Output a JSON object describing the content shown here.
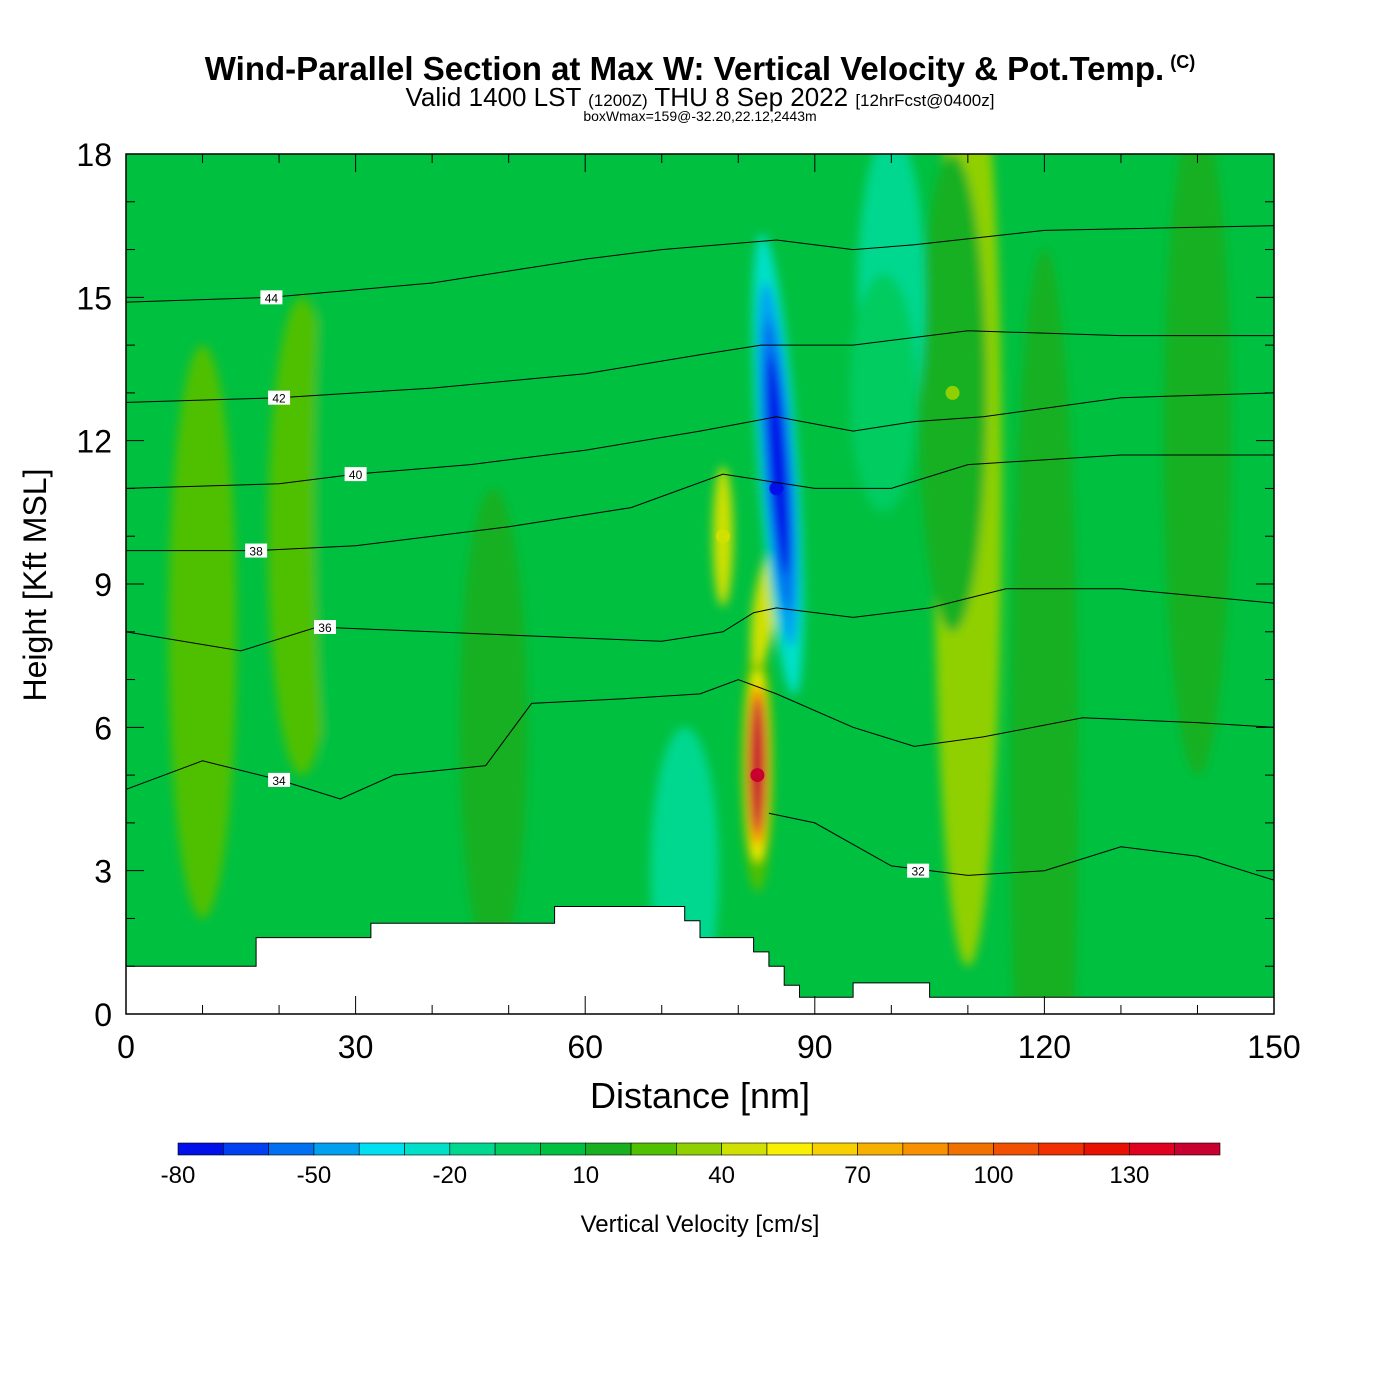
{
  "header": {
    "title": "Wind-Parallel Section at Max W: Vertical Velocity & Pot.Temp.",
    "copyright": "(C)",
    "subtitle_main": "Valid 1400 LST",
    "subtitle_utc": "(1200Z)",
    "subtitle_date": "THU 8 Sep 2022",
    "subtitle_fcst": "[12hrFcst@0400z]",
    "subtitle2": "boxWmax=159@-32.20,22.12,2443m"
  },
  "chart_data": {
    "type": "heatmap",
    "xlabel": "Distance [nm]",
    "ylabel": "Height [Kft MSL]",
    "xlim": [
      0,
      150
    ],
    "ylim": [
      0,
      18
    ],
    "x_ticks": [
      0,
      30,
      60,
      90,
      120,
      150
    ],
    "y_ticks": [
      0,
      3,
      6,
      9,
      12,
      15,
      18
    ],
    "background_value_cm_s": 5,
    "terrain": [
      [
        0,
        1.0
      ],
      [
        17,
        1.0
      ],
      [
        17,
        1.6
      ],
      [
        32,
        1.6
      ],
      [
        32,
        1.9
      ],
      [
        56,
        1.9
      ],
      [
        56,
        2.25
      ],
      [
        73,
        2.25
      ],
      [
        73,
        1.95
      ],
      [
        75,
        1.95
      ],
      [
        75,
        1.6
      ],
      [
        82,
        1.6
      ],
      [
        82,
        1.3
      ],
      [
        84,
        1.3
      ],
      [
        84,
        1.0
      ],
      [
        86,
        1.0
      ],
      [
        86,
        0.6
      ],
      [
        88,
        0.6
      ],
      [
        88,
        0.35
      ],
      [
        95,
        0.35
      ],
      [
        95,
        0.65
      ],
      [
        105,
        0.65
      ],
      [
        105,
        0.35
      ],
      [
        150,
        0.35
      ]
    ],
    "vertical_velocity_features": [
      {
        "x": 82.5,
        "y": 5.0,
        "value_cm_s": 159,
        "note": "updraft core"
      },
      {
        "x": 85,
        "y": 11.0,
        "value_cm_s": -75,
        "note": "downdraft core"
      },
      {
        "x": 78,
        "y": 10.0,
        "value_cm_s": 45
      },
      {
        "x": 108,
        "y": 13.0,
        "value_cm_s": 30
      },
      {
        "x": 100,
        "y": 16.0,
        "value_cm_s": -15
      }
    ],
    "theta_contours": [
      {
        "label": "32",
        "label_pos": [
          103.5,
          3.0
        ],
        "points": [
          [
            84,
            4.2
          ],
          [
            90,
            4.0
          ],
          [
            100,
            3.1
          ],
          [
            110,
            2.9
          ],
          [
            120,
            3.0
          ],
          [
            130,
            3.5
          ],
          [
            140,
            3.3
          ],
          [
            150,
            2.8
          ]
        ]
      },
      {
        "label": "34",
        "label_pos": [
          20,
          4.9
        ],
        "points": [
          [
            0,
            4.7
          ],
          [
            10,
            5.3
          ],
          [
            20,
            4.9
          ],
          [
            28,
            4.5
          ],
          [
            35,
            5.0
          ],
          [
            47,
            5.2
          ],
          [
            53,
            6.5
          ],
          [
            65,
            6.6
          ],
          [
            75,
            6.7
          ],
          [
            80,
            7.0
          ],
          [
            85,
            6.7
          ],
          [
            95,
            6.0
          ],
          [
            103,
            5.6
          ],
          [
            112,
            5.8
          ],
          [
            125,
            6.2
          ],
          [
            140,
            6.1
          ],
          [
            150,
            6.0
          ]
        ]
      },
      {
        "label": "36",
        "label_pos": [
          26,
          8.1
        ],
        "points": [
          [
            0,
            8.0
          ],
          [
            15,
            7.6
          ],
          [
            25,
            8.1
          ],
          [
            40,
            8.0
          ],
          [
            55,
            7.9
          ],
          [
            70,
            7.8
          ],
          [
            78,
            8.0
          ],
          [
            82,
            8.4
          ],
          [
            85,
            8.5
          ],
          [
            95,
            8.3
          ],
          [
            105,
            8.5
          ],
          [
            115,
            8.9
          ],
          [
            130,
            8.9
          ],
          [
            150,
            8.6
          ]
        ]
      },
      {
        "label": "38",
        "label_pos": [
          17,
          9.7
        ],
        "points": [
          [
            0,
            9.7
          ],
          [
            17,
            9.7
          ],
          [
            30,
            9.8
          ],
          [
            50,
            10.2
          ],
          [
            66,
            10.6
          ],
          [
            78,
            11.3
          ],
          [
            82,
            11.2
          ],
          [
            90,
            11.0
          ],
          [
            100,
            11.0
          ],
          [
            110,
            11.5
          ],
          [
            130,
            11.7
          ],
          [
            150,
            11.7
          ]
        ]
      },
      {
        "label": "40",
        "label_pos": [
          30,
          11.3
        ],
        "points": [
          [
            0,
            11.0
          ],
          [
            20,
            11.1
          ],
          [
            30,
            11.3
          ],
          [
            45,
            11.5
          ],
          [
            60,
            11.8
          ],
          [
            75,
            12.2
          ],
          [
            85,
            12.5
          ],
          [
            95,
            12.2
          ],
          [
            103,
            12.4
          ],
          [
            112,
            12.5
          ],
          [
            130,
            12.9
          ],
          [
            150,
            13.0
          ]
        ]
      },
      {
        "label": "42",
        "label_pos": [
          20,
          12.9
        ],
        "points": [
          [
            0,
            12.8
          ],
          [
            20,
            12.9
          ],
          [
            40,
            13.1
          ],
          [
            60,
            13.4
          ],
          [
            75,
            13.8
          ],
          [
            83,
            14.0
          ],
          [
            95,
            14.0
          ],
          [
            110,
            14.3
          ],
          [
            130,
            14.2
          ],
          [
            150,
            14.2
          ]
        ]
      },
      {
        "label": "44",
        "label_pos": [
          19,
          15.0
        ],
        "points": [
          [
            0,
            14.9
          ],
          [
            19,
            15.0
          ],
          [
            40,
            15.3
          ],
          [
            60,
            15.8
          ],
          [
            70,
            16.0
          ],
          [
            85,
            16.2
          ],
          [
            95,
            16.0
          ],
          [
            103,
            16.1
          ],
          [
            120,
            16.4
          ],
          [
            150,
            16.5
          ]
        ]
      }
    ]
  },
  "colorbar": {
    "label": "Vertical Velocity [cm/s]",
    "tick_labels": [
      "-80",
      "-50",
      "-20",
      "10",
      "40",
      "70",
      "100",
      "130"
    ],
    "tick_values": [
      -80,
      -50,
      -20,
      10,
      40,
      70,
      100,
      130
    ],
    "bin_edges": [
      -80,
      -70,
      -60,
      -50,
      -40,
      -30,
      -20,
      -10,
      0,
      10,
      20,
      30,
      40,
      50,
      60,
      70,
      80,
      90,
      100,
      110,
      120,
      130,
      140,
      150
    ],
    "colors": [
      "#0010e8",
      "#0040f0",
      "#0070f0",
      "#00a0f0",
      "#00e0f0",
      "#00e0c8",
      "#00d890",
      "#00cc60",
      "#00c040",
      "#18b020",
      "#50c000",
      "#90d000",
      "#d0e000",
      "#f8f000",
      "#f8d000",
      "#f8b000",
      "#f89000",
      "#f07000",
      "#f05000",
      "#f03000",
      "#e81000",
      "#e00020",
      "#c80030"
    ]
  }
}
